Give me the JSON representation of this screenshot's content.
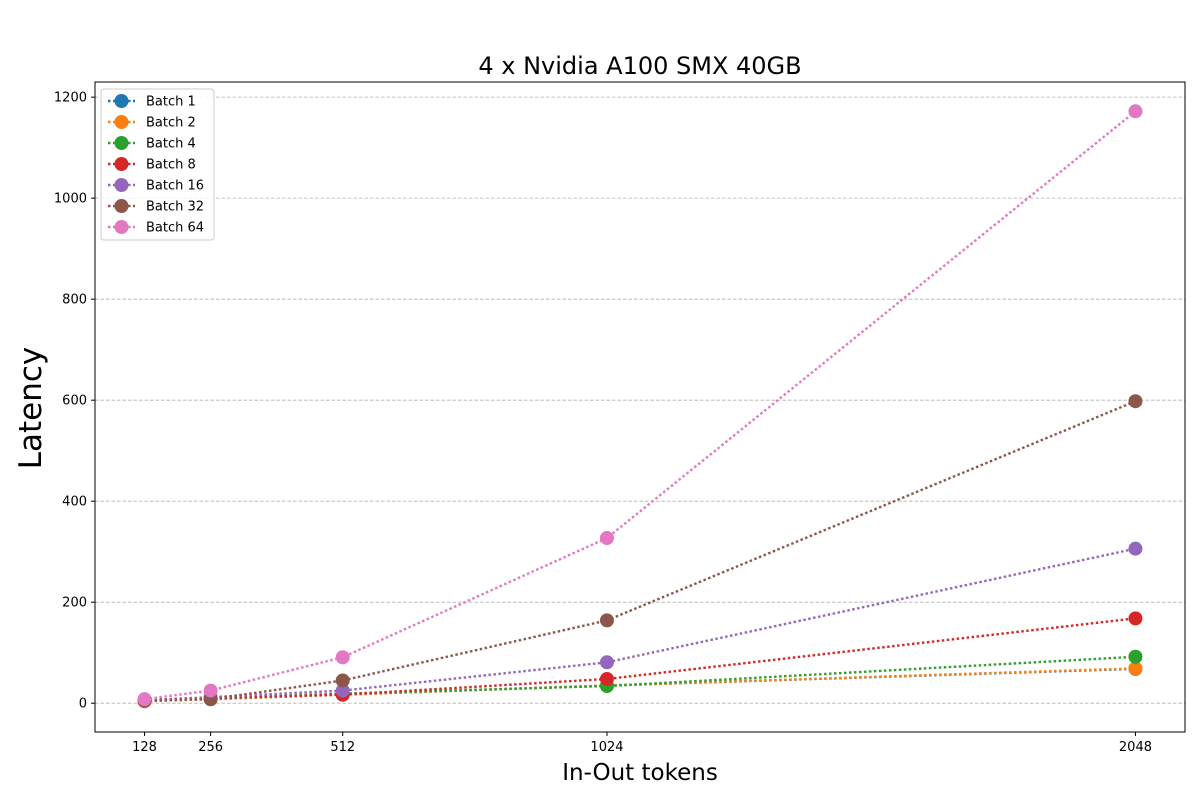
{
  "chart_data": {
    "type": "line",
    "title": "4 x Nvidia A100 SMX 40GB",
    "xlabel": "In-Out tokens",
    "ylabel": "Latency",
    "x": [
      128,
      256,
      512,
      1024,
      2048
    ],
    "x_tick_labels": [
      "128",
      "256",
      "512",
      "1024",
      "2048"
    ],
    "xlim": [
      32,
      2144
    ],
    "ylim": [
      -57,
      1230
    ],
    "y_ticks": [
      0,
      200,
      400,
      600,
      800,
      1000,
      1200
    ],
    "grid": "horizontal dashed",
    "legend_position": "top-left",
    "line_style": "dotted",
    "series": [
      {
        "name": "Batch 1",
        "color": "#1f77b4",
        "values": [
          4,
          8,
          17,
          35,
          68
        ]
      },
      {
        "name": "Batch 2",
        "color": "#ff7f0e",
        "values": [
          4,
          8,
          17,
          35,
          69
        ]
      },
      {
        "name": "Batch 4",
        "color": "#2ca02c",
        "values": [
          5,
          9,
          19,
          34,
          92
        ]
      },
      {
        "name": "Batch 8",
        "color": "#d62728",
        "values": [
          5,
          10,
          17,
          48,
          168
        ]
      },
      {
        "name": "Batch 16",
        "color": "#9467bd",
        "values": [
          6,
          12,
          25,
          81,
          306
        ]
      },
      {
        "name": "Batch 32",
        "color": "#8c564b",
        "values": [
          6,
          8,
          45,
          164,
          598
        ]
      },
      {
        "name": "Batch 64",
        "color": "#e377c2",
        "values": [
          8,
          25,
          91,
          327,
          1172
        ]
      }
    ]
  }
}
